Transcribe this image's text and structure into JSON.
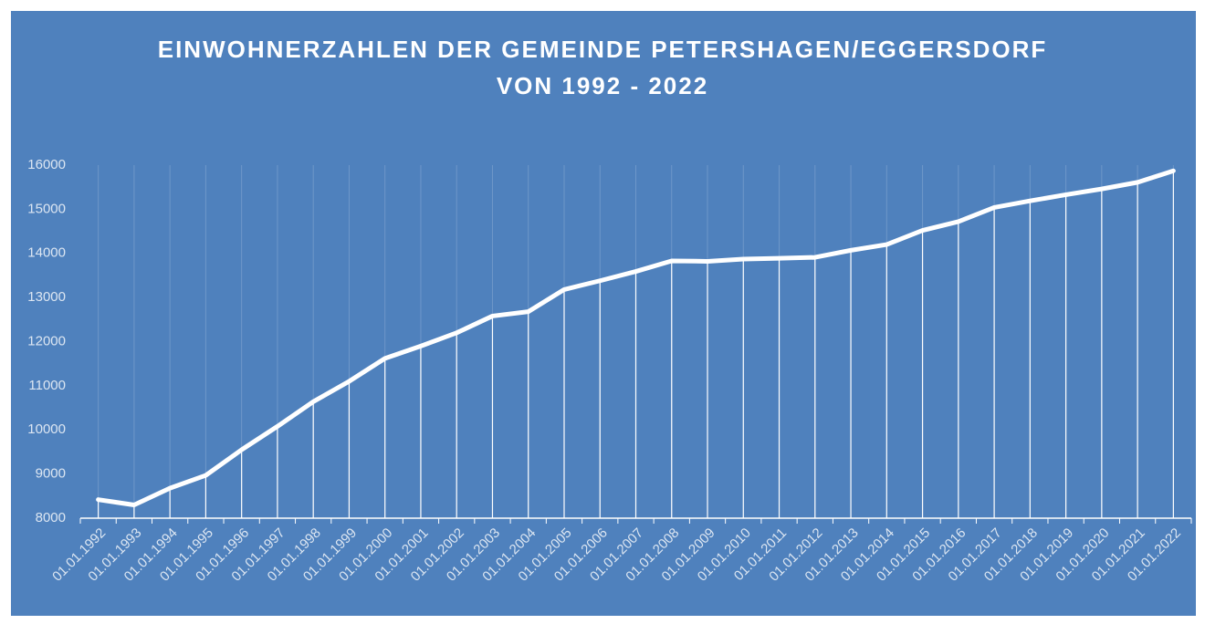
{
  "chart_data": {
    "type": "line",
    "title": [
      "EINWOHNERZAHLEN DER GEMEINDE PETERSHAGEN/EGGERSDORF",
      "VON 1992 - 2022"
    ],
    "categories": [
      "01.01.1992",
      "01.01.1993",
      "01.01.1994",
      "01.01.1995",
      "01.01.1996",
      "01.01.1997",
      "01.01.1998",
      "01.01.1999",
      "01.01.2000",
      "01.01.2001",
      "01.01.2002",
      "01.01.2003",
      "01.01.2004",
      "01.01.2005",
      "01.01.2006",
      "01.01.2007",
      "01.01.2008",
      "01.01.2009",
      "01.01.2010",
      "01.01.2011",
      "01.01.2012",
      "01.01.2013",
      "01.01.2014",
      "01.01.2015",
      "01.01.2016",
      "01.01.2017",
      "01.01.2018",
      "01.01.2019",
      "01.01.2020",
      "01.01.2021",
      "01.01.2022"
    ],
    "values": [
      8420,
      8300,
      8680,
      8970,
      9550,
      10080,
      10640,
      11100,
      11620,
      11900,
      12200,
      12580,
      12680,
      13180,
      13380,
      13590,
      13830,
      13820,
      13870,
      13890,
      13910,
      14070,
      14200,
      14520,
      14720,
      15040,
      15190,
      15330,
      15460,
      15610,
      15870
    ],
    "color": "#ffffff",
    "ylim": [
      8000,
      16000
    ],
    "yticks": [
      8000,
      9000,
      10000,
      11000,
      12000,
      13000,
      14000,
      15000,
      16000
    ],
    "grid": true,
    "drop_lines": true
  }
}
